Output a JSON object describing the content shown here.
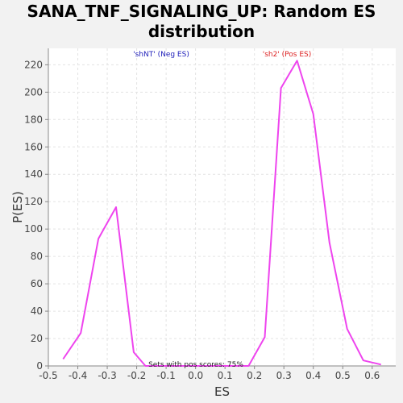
{
  "chart_data": {
    "type": "line",
    "title_lines": [
      "SANA_TNF_SIGNALING_UP: Random ES",
      "distribution"
    ],
    "xlabel": "ES",
    "ylabel": "P(ES)",
    "xlim": [
      -0.5,
      0.68
    ],
    "ylim": [
      0,
      232
    ],
    "x_ticks": [
      -0.5,
      -0.4,
      -0.3,
      -0.2,
      -0.1,
      0.0,
      0.1,
      0.2,
      0.3,
      0.4,
      0.5,
      0.6
    ],
    "x_tick_labels": [
      "-0.5",
      "-0.4",
      "-0.3",
      "-0.2",
      "-0.1",
      "0.0",
      "0.1",
      "0.2",
      "0.3",
      "0.4",
      "0.5",
      "0.6"
    ],
    "y_ticks": [
      0,
      20,
      40,
      60,
      80,
      100,
      120,
      140,
      160,
      180,
      200,
      220
    ],
    "y_tick_labels": [
      "0",
      "20",
      "40",
      "60",
      "80",
      "100",
      "120",
      "140",
      "160",
      "180",
      "200",
      "220"
    ],
    "grid": true,
    "series": [
      {
        "color": "#ee44ee",
        "x": [
          -0.45,
          -0.39,
          -0.33,
          -0.27,
          -0.21,
          -0.17,
          0.18,
          0.235,
          0.29,
          0.345,
          0.4,
          0.455,
          0.515,
          0.57,
          0.63
        ],
        "y": [
          5,
          24,
          93,
          116,
          10,
          0,
          0,
          21,
          203,
          223,
          184,
          90,
          27,
          4,
          1
        ]
      }
    ],
    "annotations": {
      "neg_label": "'shNT' (Neg ES)",
      "neg_color": "#2222bb",
      "pos_label": "'sh2' (Pos ES)",
      "pos_color": "#dd2222",
      "footer": "Sets with pos scores: 75%"
    }
  }
}
